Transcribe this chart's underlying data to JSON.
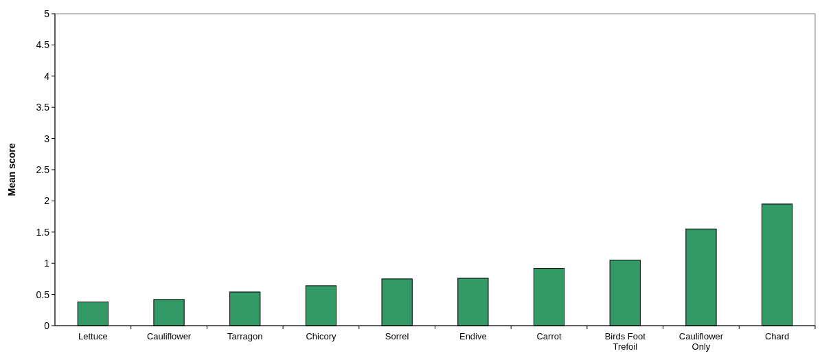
{
  "chart_data": {
    "type": "bar",
    "ylabel": "Mean score",
    "categories": [
      "Lettuce",
      "Cauliflower",
      "Tarragon",
      "Chicory",
      "Sorrel",
      "Endive",
      "Carrot",
      "Birds Foot Trefoil",
      "Cauliflower Only",
      "Chard"
    ],
    "values": [
      0.38,
      0.42,
      0.54,
      0.64,
      0.75,
      0.76,
      0.92,
      1.05,
      1.55,
      1.95
    ],
    "color": "#339966",
    "ylim": [
      0,
      5
    ],
    "yticks": [
      0,
      0.5,
      1,
      1.5,
      2,
      2.5,
      3,
      3.5,
      4,
      4.5,
      5
    ],
    "grid": false
  }
}
